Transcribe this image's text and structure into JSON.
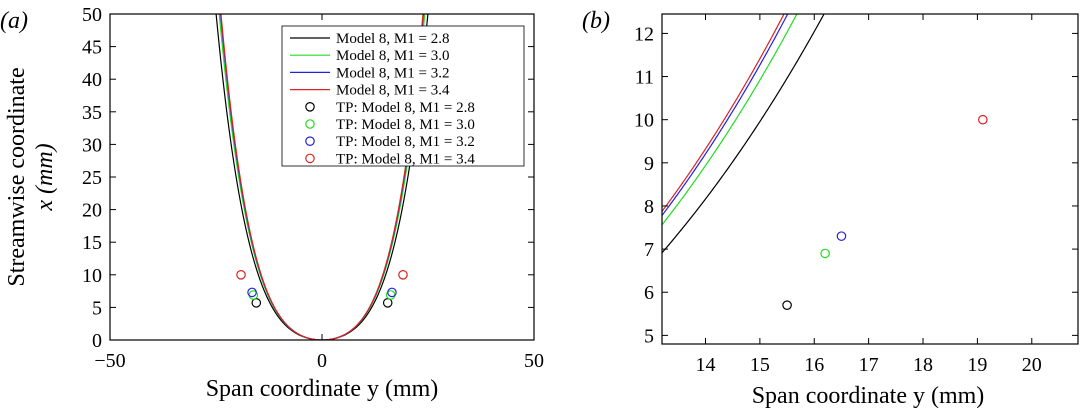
{
  "chart_data": [
    {
      "type": "line",
      "panel_label": "(a)",
      "xlabel": "Span coordinate y (mm)",
      "ylabel_line1": "Streamwise coordinate",
      "ylabel_line2": "x (mm)",
      "xlim": [
        -50,
        50
      ],
      "ylim": [
        0,
        50
      ],
      "xticks": [
        "−50",
        "0",
        "50"
      ],
      "yticks": [
        "0",
        "5",
        "10",
        "15",
        "20",
        "25",
        "30",
        "35",
        "40",
        "45",
        "50"
      ],
      "legend_position": "top-right",
      "series": [
        {
          "name": "Model 8, M1 = 2.8",
          "color": "#000000",
          "kind": "line",
          "curve": {
            "a": 0.024,
            "b": 9e-05
          }
        },
        {
          "name": "Model 8, M1 = 3.0",
          "color": "#22dd22",
          "kind": "line",
          "curve": {
            "a": 0.0258,
            "b": 0.000101
          }
        },
        {
          "name": "Model 8, M1 = 3.2",
          "color": "#2222dd",
          "kind": "line",
          "curve": {
            "a": 0.026,
            "b": 0.000107
          }
        },
        {
          "name": "Model 8, M1 = 3.4",
          "color": "#dd2222",
          "kind": "line",
          "curve": {
            "a": 0.0262,
            "b": 0.000109
          }
        },
        {
          "name": "TP: Model 8, M1 = 2.8",
          "color": "#000000",
          "kind": "marker",
          "points": [
            [
              -15.5,
              5.7
            ],
            [
              15.5,
              5.7
            ]
          ]
        },
        {
          "name": "TP: Model 8, M1 = 3.0",
          "color": "#22dd22",
          "kind": "marker",
          "points": [
            [
              -16.2,
              6.9
            ],
            [
              16.2,
              6.9
            ]
          ]
        },
        {
          "name": "TP: Model 8, M1 = 3.2",
          "color": "#2222dd",
          "kind": "marker",
          "points": [
            [
              -16.5,
              7.3
            ],
            [
              16.5,
              7.3
            ]
          ]
        },
        {
          "name": "TP: Model 8, M1 = 3.4",
          "color": "#dd2222",
          "kind": "marker",
          "points": [
            [
              -19.1,
              10.0
            ],
            [
              19.1,
              10.0
            ]
          ]
        }
      ]
    },
    {
      "type": "line",
      "panel_label": "(b)",
      "xlabel": "Span coordinate y (mm)",
      "xlim": [
        13.2,
        20.85
      ],
      "ylim": [
        4.8,
        12.45
      ],
      "xticks": [
        "14",
        "15",
        "16",
        "17",
        "18",
        "19",
        "20"
      ],
      "yticks": [
        "5",
        "6",
        "7",
        "8",
        "9",
        "10",
        "11",
        "12"
      ],
      "series": [
        {
          "name": "Model 8, M1 = 2.8",
          "color": "#000000",
          "kind": "line",
          "curve": {
            "a": 0.024,
            "b": 9e-05
          }
        },
        {
          "name": "Model 8, M1 = 3.0",
          "color": "#22dd22",
          "kind": "line",
          "curve": {
            "a": 0.0258,
            "b": 0.000101
          }
        },
        {
          "name": "Model 8, M1 = 3.2",
          "color": "#2222dd",
          "kind": "line",
          "curve": {
            "a": 0.026,
            "b": 0.000107
          }
        },
        {
          "name": "Model 8, M1 = 3.4",
          "color": "#dd2222",
          "kind": "line",
          "curve": {
            "a": 0.0262,
            "b": 0.000109
          }
        },
        {
          "name": "TP: Model 8, M1 = 2.8",
          "color": "#000000",
          "kind": "marker",
          "points": [
            [
              15.5,
              5.7
            ]
          ]
        },
        {
          "name": "TP: Model 8, M1 = 3.0",
          "color": "#22dd22",
          "kind": "marker",
          "points": [
            [
              16.2,
              6.9
            ]
          ]
        },
        {
          "name": "TP: Model 8, M1 = 3.2",
          "color": "#2222dd",
          "kind": "marker",
          "points": [
            [
              16.5,
              7.3
            ]
          ]
        },
        {
          "name": "TP: Model 8, M1 = 3.4",
          "color": "#dd2222",
          "kind": "marker",
          "points": [
            [
              19.1,
              10.0
            ]
          ]
        }
      ]
    }
  ]
}
